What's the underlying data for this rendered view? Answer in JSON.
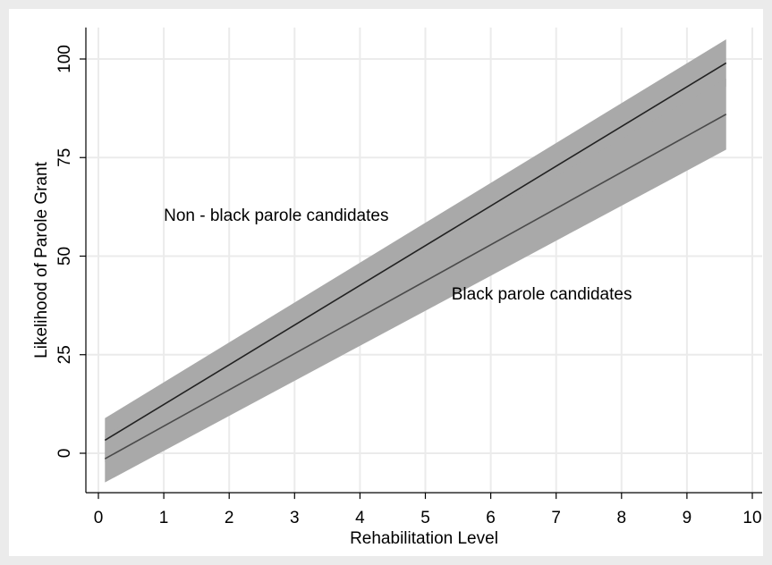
{
  "chart_data": {
    "type": "line",
    "title": "",
    "xlabel": "Rehabilitation Level",
    "ylabel": "Likelihood of Parole Grant",
    "xlim": [
      0,
      10
    ],
    "ylim": [
      -10,
      108
    ],
    "xticks": [
      "0",
      "1",
      "2",
      "3",
      "4",
      "5",
      "6",
      "7",
      "8",
      "9",
      "10"
    ],
    "yticks": [
      "0",
      "25",
      "50",
      "75",
      "100"
    ],
    "grid": true,
    "legend": "none",
    "series": [
      {
        "name": "Non - black parole candidates",
        "x": [
          0.1,
          9.6
        ],
        "y": [
          3.3,
          99.0
        ],
        "ci_lower": [
          -2.3,
          93.0
        ],
        "ci_upper": [
          8.9,
          105.0
        ],
        "color": "#222222"
      },
      {
        "name": "Black parole candidates",
        "x": [
          0.1,
          9.6
        ],
        "y": [
          -1.4,
          86.0
        ],
        "ci_lower": [
          -7.4,
          77.0
        ],
        "ci_upper": [
          4.6,
          95.0
        ],
        "color": "#4a4a4a"
      }
    ],
    "band_color": "#a9a9a9",
    "annotations": [
      {
        "text": "Non - black parole candidates",
        "x": 1.0,
        "y": 59
      },
      {
        "text": "Black parole candidates",
        "x": 5.4,
        "y": 39
      }
    ]
  }
}
